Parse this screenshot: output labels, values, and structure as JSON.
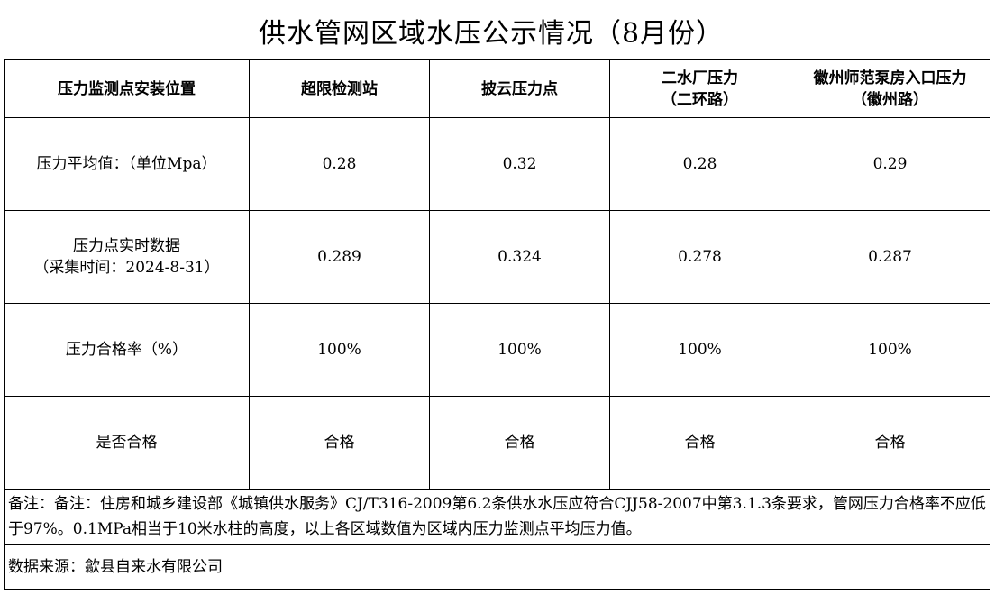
{
  "title": "供水管网区域水压公示情况（8月份）",
  "headers": [
    "压力监测点安装位置",
    "超限检测站",
    "披云压力点",
    "二水厂压力\n（二环路）",
    "徽州师范泵房入口压力\n（徽州路）"
  ],
  "rows": [
    {
      "label": "压力平均值：（单位Mpa）",
      "values": [
        "0.28",
        "0.32",
        "0.28",
        "0.29"
      ]
    },
    {
      "label": "压力点实时数据\n（采集时间：2024-8-31）",
      "values": [
        "0.289",
        "0.324",
        "0.278",
        "0.287"
      ]
    },
    {
      "label": "压力合格率（%）",
      "values": [
        "100%",
        "100%",
        "100%",
        "100%"
      ]
    },
    {
      "label": "是否合格",
      "values": [
        "合格",
        "合格",
        "合格",
        "合格"
      ]
    }
  ],
  "note": "备注：备注：住房和城乡建设部《城镇供水服务》CJ/T316-2009第6.2条供水水压应符合CJJ58-2007中第3.1.3条要求，管网压力合格率不应低于97%。0.1MPa相当于10米水柱的高度，以上各区域数值为区域内压力监测点平均压力值。",
  "source": "数据来源：歙县自来水有限公司"
}
